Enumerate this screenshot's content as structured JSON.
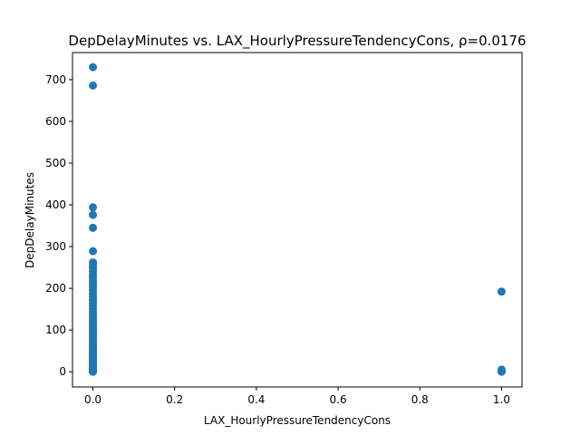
{
  "chart_data": {
    "type": "scatter",
    "title": "DepDelayMinutes vs. LAX_HourlyPressureTendencyCons, ρ=0.0176",
    "xlabel": "LAX_HourlyPressureTendencyCons",
    "ylabel": "DepDelayMinutes",
    "xlim": [
      -0.05,
      1.05
    ],
    "ylim": [
      -36.5,
      765
    ],
    "xticks": [
      0.0,
      0.2,
      0.4,
      0.6,
      0.8,
      1.0
    ],
    "xtick_labels": [
      "0.0",
      "0.2",
      "0.4",
      "0.6",
      "0.8",
      "1.0"
    ],
    "yticks": [
      0,
      100,
      200,
      300,
      400,
      500,
      600,
      700
    ],
    "ytick_labels": [
      "0",
      "100",
      "200",
      "300",
      "400",
      "500",
      "600",
      "700"
    ],
    "grid": false,
    "marker_color": "#1f77b4",
    "series": [
      {
        "points": [
          [
            0,
            730
          ],
          [
            0,
            686
          ],
          [
            0,
            394
          ],
          [
            0,
            376
          ],
          [
            0,
            345
          ],
          [
            0,
            289
          ],
          [
            0,
            262
          ],
          [
            0,
            255
          ],
          [
            0,
            248
          ],
          [
            0,
            240
          ],
          [
            0,
            232
          ],
          [
            0,
            225
          ],
          [
            0,
            218
          ],
          [
            0,
            210
          ],
          [
            0,
            203
          ],
          [
            0,
            196
          ],
          [
            0,
            188
          ],
          [
            0,
            180
          ],
          [
            0,
            172
          ],
          [
            0,
            165
          ],
          [
            0,
            158
          ],
          [
            0,
            150
          ],
          [
            0,
            143
          ],
          [
            0,
            136
          ],
          [
            0,
            129
          ],
          [
            0,
            122
          ],
          [
            0,
            116
          ],
          [
            0,
            110
          ],
          [
            0,
            104
          ],
          [
            0,
            98
          ],
          [
            0,
            92
          ],
          [
            0,
            86
          ],
          [
            0,
            80
          ],
          [
            0,
            75
          ],
          [
            0,
            70
          ],
          [
            0,
            65
          ],
          [
            0,
            60
          ],
          [
            0,
            55
          ],
          [
            0,
            50
          ],
          [
            0,
            46
          ],
          [
            0,
            42
          ],
          [
            0,
            38
          ],
          [
            0,
            34
          ],
          [
            0,
            30
          ],
          [
            0,
            26
          ],
          [
            0,
            22
          ],
          [
            0,
            19
          ],
          [
            0,
            16
          ],
          [
            0,
            13
          ],
          [
            0,
            10
          ],
          [
            0,
            8
          ],
          [
            0,
            6
          ],
          [
            0,
            4
          ],
          [
            0,
            2
          ],
          [
            0,
            1
          ],
          [
            0,
            0
          ],
          [
            1,
            192
          ],
          [
            1,
            5
          ],
          [
            1,
            3
          ],
          [
            1,
            2
          ],
          [
            1,
            1
          ],
          [
            1,
            0
          ]
        ]
      }
    ]
  }
}
